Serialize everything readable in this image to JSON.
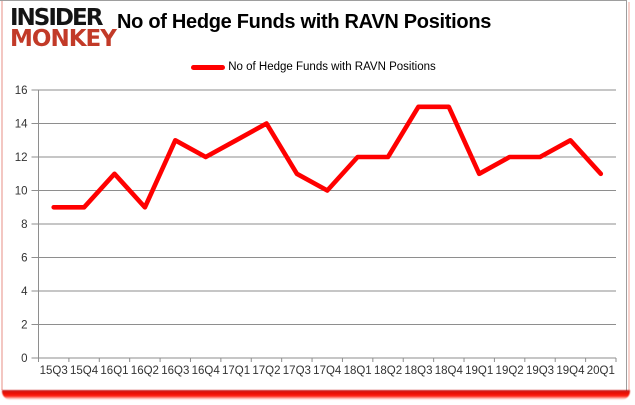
{
  "logo": {
    "line1": "INSIDER",
    "line2": "MONKEY"
  },
  "header": {
    "title": "No of Hedge Funds with RAVN Positions"
  },
  "legend": {
    "label": "No of Hedge Funds with RAVN Positions"
  },
  "colors": {
    "line": "#FF0000",
    "logo_black": "#141414",
    "logo_red": "#C23A28",
    "gridline": "#8E8E8E",
    "tick_text": "#333333",
    "bottom_bar": "#E80C00"
  },
  "chart_data": {
    "type": "line",
    "title": "No of Hedge Funds with RAVN Positions",
    "legend_entries": [
      "No of Hedge Funds with RAVN Positions"
    ],
    "legend_position": "top-center",
    "categories": [
      "15Q3",
      "15Q4",
      "16Q1",
      "16Q2",
      "16Q3",
      "16Q4",
      "17Q1",
      "17Q2",
      "17Q3",
      "17Q4",
      "18Q1",
      "18Q2",
      "18Q3",
      "18Q4",
      "19Q1",
      "19Q2",
      "19Q3",
      "19Q4",
      "20Q1"
    ],
    "values": [
      9,
      9,
      11,
      9,
      13,
      12,
      13,
      14,
      11,
      10,
      12,
      12,
      15,
      15,
      11,
      12,
      12,
      13,
      11
    ],
    "xlabel": "",
    "ylabel": "",
    "ylim": [
      0,
      16
    ],
    "ytick_step": 2,
    "grid": true,
    "line_color": "#FF0000"
  }
}
